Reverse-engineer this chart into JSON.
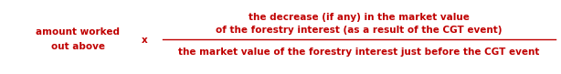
{
  "left_text_line1": "amount worked",
  "left_text_line2": "out above",
  "multiply_symbol": "x",
  "numerator_line1": "the decrease (if any) in the market value",
  "numerator_line2": "of the forestry interest (as a result of the CGT event)",
  "denominator": "the market value of the forestry interest just before the CGT event",
  "text_color": "#c00000",
  "bg_color": "#ffffff",
  "font_size": 7.5,
  "fig_width": 6.14,
  "fig_height": 0.81,
  "dpi": 100
}
